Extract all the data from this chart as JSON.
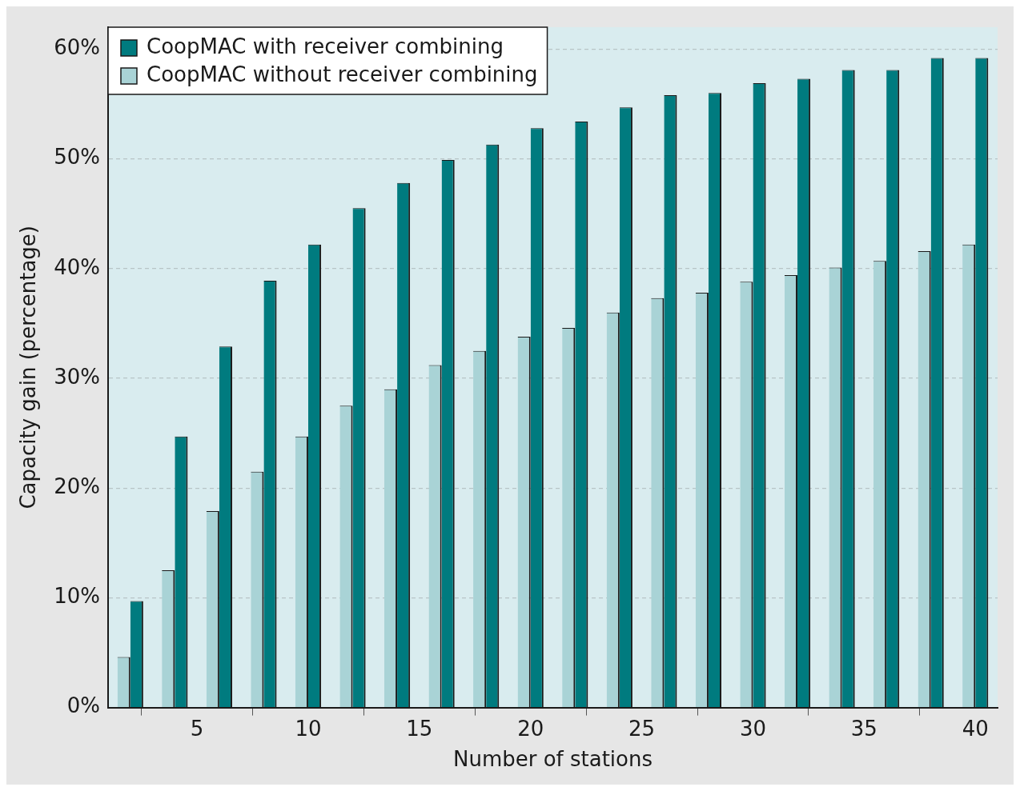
{
  "chart_data": {
    "type": "bar",
    "xlabel": "Number of stations",
    "ylabel": "Capacity gain (percentage)",
    "x": [
      2,
      4,
      6,
      8,
      10,
      12,
      14,
      16,
      18,
      20,
      22,
      24,
      26,
      28,
      30,
      32,
      34,
      36,
      38,
      40
    ],
    "series": [
      {
        "name": "CoopMAC with receiver combining",
        "color": "#007b7f",
        "values": [
          9.7,
          24.7,
          32.9,
          38.9,
          42.2,
          45.5,
          47.8,
          49.9,
          51.3,
          52.8,
          53.4,
          54.7,
          55.8,
          56.0,
          56.9,
          57.3,
          58.1,
          58.1,
          59.2,
          59.2
        ]
      },
      {
        "name": "CoopMAC without receiver combining",
        "color": "#a9d3d6",
        "values": [
          4.6,
          12.5,
          17.9,
          21.5,
          24.7,
          27.5,
          29.0,
          31.2,
          32.5,
          33.8,
          34.6,
          36.0,
          37.3,
          37.8,
          38.8,
          39.4,
          40.1,
          40.7,
          41.6,
          42.2
        ]
      }
    ],
    "xlim": [
      1,
      41
    ],
    "xticks": [
      5,
      10,
      15,
      20,
      25,
      30,
      35,
      40
    ],
    "ylim": [
      0,
      62
    ],
    "yticks": [
      {
        "value": 0,
        "label": "0%"
      },
      {
        "value": 10,
        "label": "10%"
      },
      {
        "value": 20,
        "label": "20%"
      },
      {
        "value": 30,
        "label": "30%"
      },
      {
        "value": 40,
        "label": "40%"
      },
      {
        "value": 50,
        "label": "50%"
      },
      {
        "value": 60,
        "label": "60%"
      }
    ],
    "grid": "y",
    "legend": "top left"
  }
}
